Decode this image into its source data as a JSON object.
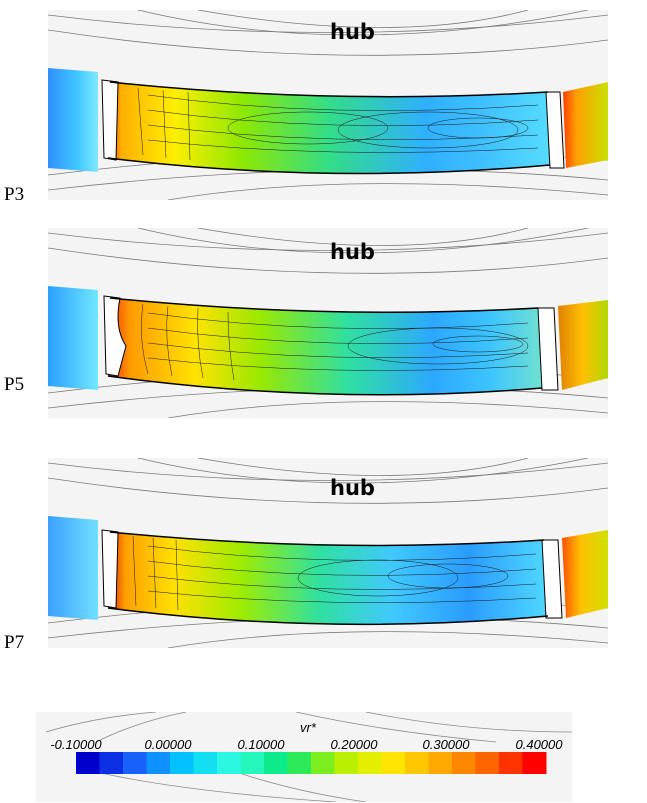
{
  "panels": [
    {
      "label": "P3",
      "hub": "hub"
    },
    {
      "label": "P5",
      "hub": "hub"
    },
    {
      "label": "P7",
      "hub": "hub"
    }
  ],
  "legend": {
    "title": "vr*",
    "ticks": [
      "-0.10000",
      "0.00000",
      "0.10000",
      "0.20000",
      "0.30000",
      "0.40000"
    ],
    "range": [
      -0.1,
      0.4
    ],
    "colors": [
      "#0000cc",
      "#1a66ff",
      "#00ccff",
      "#33ffdd",
      "#00e676",
      "#a8f000",
      "#ffee00",
      "#ffb000",
      "#ff6a00",
      "#ff0000"
    ]
  }
}
